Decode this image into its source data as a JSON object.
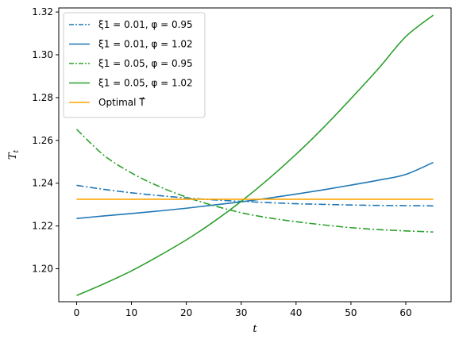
{
  "chart_data": {
    "type": "line",
    "title": "",
    "xlabel": "t",
    "ylabel": "T_t",
    "xlim": [
      -3.25,
      68.25
    ],
    "ylim": [
      1.1846,
      1.3219
    ],
    "xticks": [
      0,
      10,
      20,
      30,
      40,
      50,
      60
    ],
    "yticks": [
      1.2,
      1.22,
      1.24,
      1.26,
      1.28,
      1.3,
      1.32
    ],
    "ytick_labels": [
      "1.20",
      "1.22",
      "1.24",
      "1.26",
      "1.28",
      "1.30",
      "1.32"
    ],
    "grid": false,
    "legend_position": "upper-left",
    "x": [
      0,
      5,
      10,
      15,
      20,
      25,
      30,
      35,
      40,
      45,
      50,
      55,
      60,
      65
    ],
    "series": [
      {
        "name": "ξ1 = 0.01, φ = 0.95",
        "color": "#1f77b4",
        "style": "dashdot",
        "values": [
          1.239,
          1.2371,
          1.2355,
          1.2342,
          1.2331,
          1.2322,
          1.2315,
          1.2309,
          1.2304,
          1.2301,
          1.2298,
          1.2296,
          1.2295,
          1.2294
        ]
      },
      {
        "name": "ξ1 = 0.01, φ = 1.02",
        "color": "#1f77b4",
        "style": "solid",
        "values": [
          1.2235,
          1.2247,
          1.2258,
          1.227,
          1.2283,
          1.2298,
          1.2313,
          1.233,
          1.2349,
          1.2369,
          1.2391,
          1.2414,
          1.2441,
          1.2497
        ]
      },
      {
        "name": "ξ1 = 0.05, φ = 0.95",
        "color": "#2ca02c",
        "style": "dashdot",
        "values": [
          1.2652,
          1.253,
          1.2448,
          1.2385,
          1.2335,
          1.2295,
          1.2262,
          1.2238,
          1.222,
          1.2205,
          1.2192,
          1.2183,
          1.2177,
          1.2172
        ]
      },
      {
        "name": "ξ1 = 0.05, φ = 1.02",
        "color": "#2ca02c",
        "style": "solid",
        "values": [
          1.1875,
          1.193,
          1.199,
          1.206,
          1.2135,
          1.222,
          1.2315,
          1.242,
          1.2535,
          1.266,
          1.2795,
          1.2935,
          1.3085,
          1.3185
        ]
      },
      {
        "name": "Optimal T⃗",
        "color": "#ffa500",
        "style": "solid",
        "values": [
          1.2325,
          1.2325,
          1.2325,
          1.2325,
          1.2325,
          1.2325,
          1.2325,
          1.2325,
          1.2325,
          1.2325,
          1.2325,
          1.2325,
          1.2325,
          1.2325
        ]
      }
    ]
  }
}
